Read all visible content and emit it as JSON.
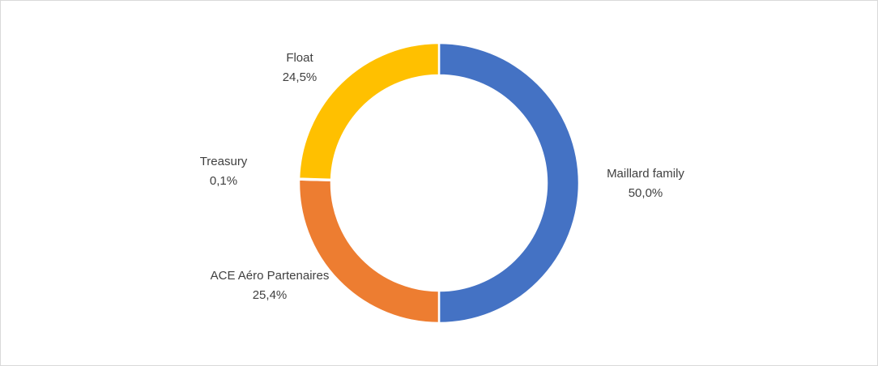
{
  "chart_data": {
    "type": "donut",
    "categories": [
      "Maillard family",
      "ACE Aéro Partenaires",
      "Treasury",
      "Float"
    ],
    "values": [
      50.0,
      25.4,
      0.1,
      24.5
    ],
    "value_labels": [
      "50,0%",
      "25,4%",
      "0,1%",
      "24,5%"
    ],
    "colors": [
      "#4472c4",
      "#ed7d31",
      "#a5a5a5",
      "#ffc000"
    ]
  }
}
